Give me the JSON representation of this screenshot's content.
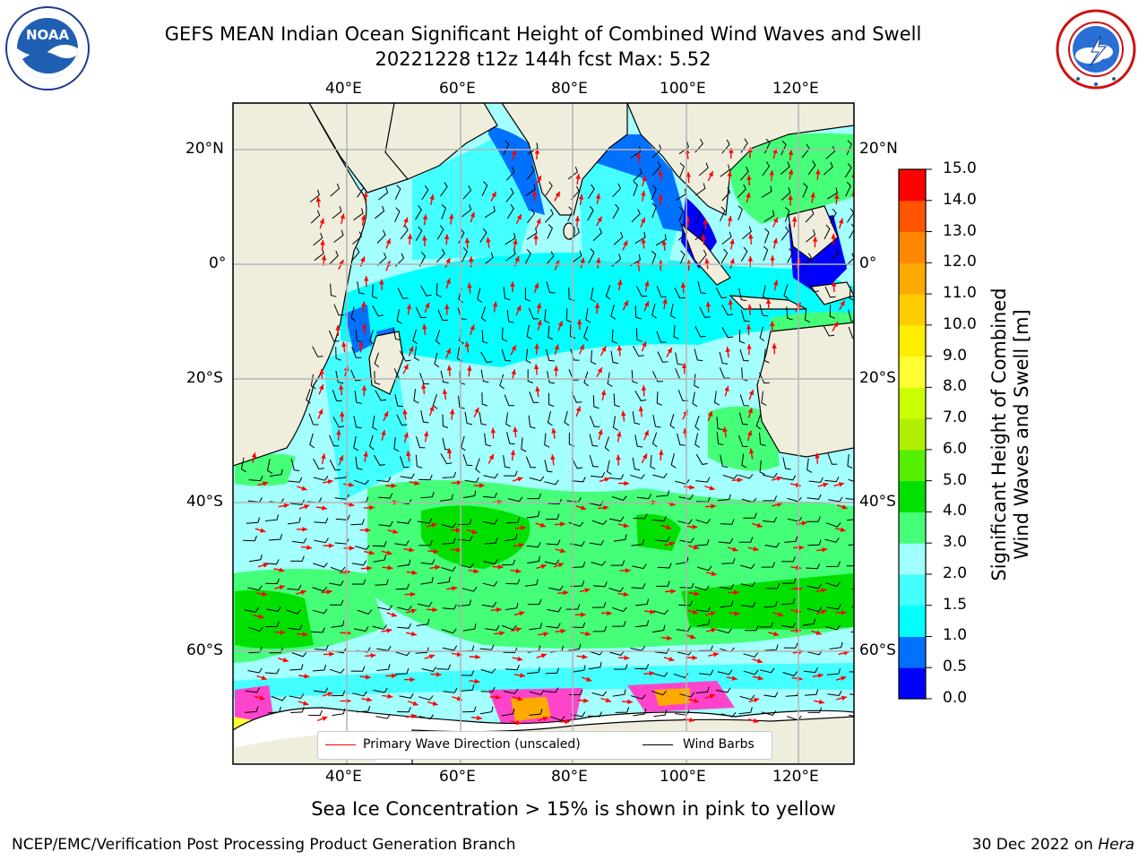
{
  "header": {
    "title_line1": "GEFS MEAN Indian Ocean Significant Height of Combined Wind Waves and Swell",
    "title_line2": "20221228 t12z 144h fcst   Max: 5.52"
  },
  "logos": {
    "left": {
      "icon": "noaa-logo-icon",
      "text": "NOAA",
      "ring_text": "NATIONAL OCEANIC AND ATMOSPHERIC ADMINISTRATION · U.S. DEPARTMENT OF COMMERCE"
    },
    "right": {
      "icon": "nws-logo-icon",
      "ring_text": "NATIONAL WEATHER SERVICE"
    }
  },
  "map": {
    "lon_labels": [
      "40°E",
      "60°E",
      "80°E",
      "100°E",
      "120°E"
    ],
    "lat_labels": [
      "20°N",
      "0°",
      "20°S",
      "40°S",
      "60°S"
    ],
    "land_color": "#efeedd",
    "grid_color": "#b4b4b4"
  },
  "legend": {
    "primary_wave_label": "Primary Wave Direction (unscaled)",
    "primary_wave_color": "#ff0000",
    "wind_barbs_label": "Wind Barbs",
    "wind_barbs_color": "#000000"
  },
  "colorbar": {
    "title_line1": "Significant Height of Combined",
    "title_line2": "Wind Waves and Swell [m]",
    "ticks": [
      "0.0",
      "0.5",
      "1.0",
      "1.5",
      "2.0",
      "3.0",
      "4.0",
      "5.0",
      "6.0",
      "7.0",
      "8.0",
      "9.0",
      "10.0",
      "11.0",
      "12.0",
      "13.0",
      "14.0",
      "15.0"
    ],
    "colors": [
      "#0000ff",
      "#0070ff",
      "#00ffff",
      "#44ffff",
      "#a0ffff",
      "#44ff77",
      "#00e000",
      "#55f000",
      "#b0f000",
      "#ccff00",
      "#ffff33",
      "#ffee00",
      "#ffcc00",
      "#ffaa00",
      "#ff8800",
      "#ff5500",
      "#ff0000"
    ]
  },
  "notes": {
    "ice": "Sea Ice Concentration > 15% is shown in pink to yellow"
  },
  "footer": {
    "left": "NCEP/EMC/Verification Post Processing Product Generation Branch",
    "right_date": "30 Dec 2022 on ",
    "right_host": "Hera"
  }
}
